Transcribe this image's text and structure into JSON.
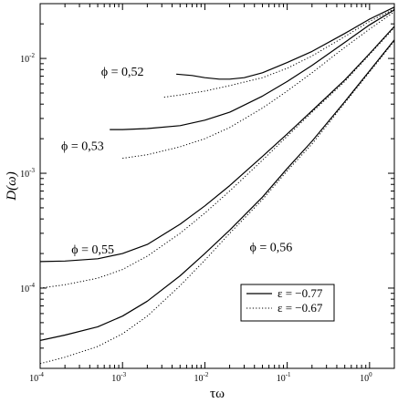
{
  "chart_data": {
    "type": "line",
    "xscale": "log",
    "yscale": "log",
    "xlim": [
      0.0001,
      2
    ],
    "ylim": [
      2e-05,
      0.03
    ],
    "xlabel": "τω",
    "ylabel": "D(ω)",
    "xticks": [
      {
        "value": 0.0001,
        "base": "10",
        "exp": "-4"
      },
      {
        "value": 0.001,
        "base": "10",
        "exp": "-3"
      },
      {
        "value": 0.01,
        "base": "10",
        "exp": "-2"
      },
      {
        "value": 0.1,
        "base": "10",
        "exp": "-1"
      },
      {
        "value": 1,
        "base": "10",
        "exp": "0"
      }
    ],
    "yticks": [
      {
        "value": 0.0001,
        "base": "10",
        "exp": "-4"
      },
      {
        "value": 0.001,
        "base": "10",
        "exp": "-3"
      },
      {
        "value": 0.01,
        "base": "10",
        "exp": "-2"
      }
    ],
    "legend": {
      "position": "lower-right",
      "entries": [
        {
          "label": "ε = −0.77",
          "style": "solid"
        },
        {
          "label": "ε = −0.67",
          "style": "dotted"
        }
      ]
    },
    "annotations": [
      {
        "text": "ϕ = 0,52",
        "x": 0.00055,
        "y": 0.0071
      },
      {
        "text": "ϕ = 0,53",
        "x": 0.00018,
        "y": 0.0016
      },
      {
        "text": "ϕ = 0,55",
        "x": 0.00024,
        "y": 0.0002
      },
      {
        "text": "ϕ = 0,56",
        "x": 0.035,
        "y": 0.00021
      }
    ],
    "series": [
      {
        "group": "ϕ = 0,52",
        "style": "solid",
        "x": [
          0.0045,
          0.007,
          0.01,
          0.015,
          0.02,
          0.03,
          0.05,
          0.1,
          0.2,
          0.5,
          1,
          2
        ],
        "y": [
          0.0073,
          0.0071,
          0.0068,
          0.0066,
          0.0066,
          0.0068,
          0.0075,
          0.0092,
          0.0115,
          0.0165,
          0.022,
          0.028
        ]
      },
      {
        "group": "ϕ = 0,52",
        "style": "dotted",
        "x": [
          0.0032,
          0.005,
          0.01,
          0.02,
          0.05,
          0.1,
          0.2,
          0.5,
          1,
          2
        ],
        "y": [
          0.0046,
          0.0048,
          0.0052,
          0.0058,
          0.0068,
          0.0082,
          0.0105,
          0.0155,
          0.021,
          0.027
        ]
      },
      {
        "group": "ϕ = 0,53",
        "style": "solid",
        "x": [
          0.0007,
          0.001,
          0.002,
          0.005,
          0.01,
          0.02,
          0.05,
          0.1,
          0.2,
          0.5,
          1,
          2
        ],
        "y": [
          0.0024,
          0.0024,
          0.00245,
          0.0026,
          0.0029,
          0.0034,
          0.0047,
          0.0063,
          0.0087,
          0.0138,
          0.0196,
          0.0265
        ]
      },
      {
        "group": "ϕ = 0,53",
        "style": "dotted",
        "x": [
          0.001,
          0.002,
          0.005,
          0.01,
          0.02,
          0.05,
          0.1,
          0.2,
          0.5,
          1,
          2
        ],
        "y": [
          0.00135,
          0.00145,
          0.0017,
          0.002,
          0.0025,
          0.0037,
          0.0052,
          0.0075,
          0.0125,
          0.018,
          0.0255
        ]
      },
      {
        "group": "ϕ = 0,55",
        "style": "solid",
        "x": [
          0.0001,
          0.0002,
          0.0005,
          0.001,
          0.002,
          0.005,
          0.01,
          0.02,
          0.05,
          0.1,
          0.2,
          0.5,
          1,
          2
        ],
        "y": [
          0.00017,
          0.000172,
          0.00018,
          0.0002,
          0.00024,
          0.00036,
          0.00052,
          0.00078,
          0.0014,
          0.0022,
          0.0035,
          0.0065,
          0.011,
          0.019
        ]
      },
      {
        "group": "ϕ = 0,55",
        "style": "dotted",
        "x": [
          0.0001,
          0.0002,
          0.0005,
          0.001,
          0.002,
          0.005,
          0.01,
          0.02,
          0.05,
          0.1,
          0.2,
          0.5,
          1,
          2
        ],
        "y": [
          0.0001,
          0.000107,
          0.000122,
          0.000145,
          0.00019,
          0.0003,
          0.00045,
          0.0007,
          0.0013,
          0.0021,
          0.0034,
          0.0063,
          0.0108,
          0.0185
        ]
      },
      {
        "group": "ϕ = 0,56",
        "style": "solid",
        "x": [
          0.0001,
          0.0002,
          0.0005,
          0.001,
          0.002,
          0.005,
          0.01,
          0.02,
          0.05,
          0.1,
          0.2,
          0.5,
          1,
          2
        ],
        "y": [
          3.5e-05,
          3.9e-05,
          4.6e-05,
          5.7e-05,
          7.7e-05,
          0.000128,
          0.0002,
          0.00032,
          0.00062,
          0.0011,
          0.0019,
          0.0042,
          0.0078,
          0.0145
        ]
      },
      {
        "group": "ϕ = 0,56",
        "style": "dotted",
        "x": [
          0.0001,
          0.0002,
          0.0005,
          0.001,
          0.002,
          0.005,
          0.01,
          0.02,
          0.05,
          0.1,
          0.2,
          0.5,
          1,
          2
        ],
        "y": [
          2.2e-05,
          2.5e-05,
          3.1e-05,
          4e-05,
          5.7e-05,
          0.000105,
          0.000175,
          0.0003,
          0.00059,
          0.00105,
          0.0018,
          0.0041,
          0.0076,
          0.0142
        ]
      }
    ]
  }
}
